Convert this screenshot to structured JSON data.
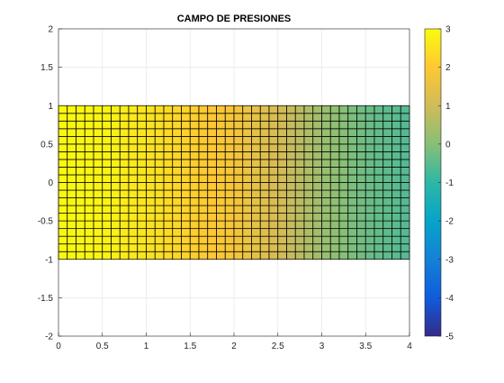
{
  "chart_data": {
    "type": "heatmap",
    "title": "CAMPO DE PRESIONES",
    "xlabel": "",
    "ylabel": "",
    "xlim": [
      0,
      4
    ],
    "ylim": [
      -2,
      2
    ],
    "xticks": [
      0,
      0.5,
      1,
      1.5,
      2,
      2.5,
      3,
      3.5,
      4
    ],
    "xtick_labels": [
      "0",
      "0.5",
      "1",
      "1.5",
      "2",
      "2.5",
      "3",
      "3.5",
      "4"
    ],
    "yticks": [
      2,
      1.5,
      1,
      0.5,
      0,
      -0.5,
      -1,
      -1.5,
      -2
    ],
    "ytick_labels": [
      "2",
      "1.5",
      "1",
      "0.5",
      "0",
      "-0.5",
      "-1",
      "-1.5",
      "-2"
    ],
    "grid": true,
    "domain_x": [
      0,
      4
    ],
    "domain_y": [
      -1,
      1
    ],
    "mesh_nx": 40,
    "mesh_ny": 20,
    "pressure_at_x": {
      "x": [
        0,
        0.5,
        1,
        1.5,
        2,
        2.5,
        3,
        3.5,
        4
      ],
      "value": [
        2.95,
        2.85,
        2.55,
        2.15,
        1.8,
        1.1,
        0.3,
        -0.3,
        -0.6
      ]
    },
    "colorbar": {
      "colormap": "parula",
      "limits": [
        -5,
        3
      ],
      "ticks": [
        3,
        2,
        1,
        0,
        -1,
        -2,
        -3,
        -4,
        -5
      ],
      "tick_labels": [
        "3",
        "2",
        "1",
        "0",
        "-1",
        "-2",
        "-3",
        "-4",
        "-5"
      ]
    }
  }
}
